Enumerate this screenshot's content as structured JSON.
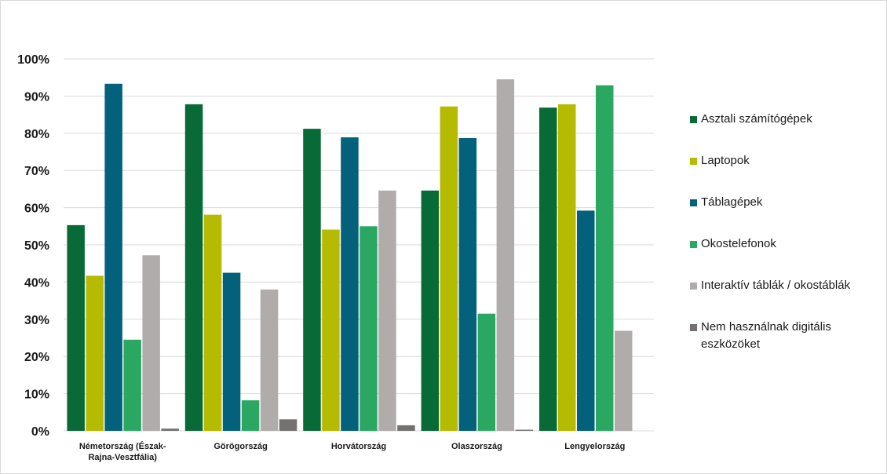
{
  "chart_data": {
    "type": "bar",
    "title": "",
    "xlabel": "",
    "ylabel": "",
    "ylim": [
      0,
      100
    ],
    "yticks": [
      0,
      10,
      20,
      30,
      40,
      50,
      60,
      70,
      80,
      90,
      100
    ],
    "ytick_labels": [
      "0%",
      "10%",
      "20%",
      "30%",
      "40%",
      "50%",
      "60%",
      "70%",
      "80%",
      "90%",
      "100%"
    ],
    "grid": true,
    "legend_position": "right",
    "categories": [
      "Németország (Észak-Rajna-Vesztfália)",
      "Görögország",
      "Horvátország",
      "Olaszország",
      "Lengyelország"
    ],
    "category_lines": [
      [
        "Németország (Észak-",
        "Rajna-Vesztfália)"
      ],
      [
        "Görögország"
      ],
      [
        "Horvátország"
      ],
      [
        "Olaszország"
      ],
      [
        "Lengyelország"
      ]
    ],
    "series": [
      {
        "name": "Asztali számítógépek",
        "color": "#076a37",
        "values": [
          55.3,
          87.8,
          81.2,
          64.6,
          86.9
        ]
      },
      {
        "name": "Laptopok",
        "color": "#b5bb00",
        "values": [
          41.7,
          58.1,
          54.1,
          87.2,
          87.8
        ]
      },
      {
        "name": "Táblagépek",
        "color": "#04617b",
        "values": [
          93.3,
          42.5,
          78.9,
          78.7,
          59.2
        ]
      },
      {
        "name": "Okostelefonok",
        "color": "#2aa862",
        "values": [
          24.5,
          8.2,
          55.0,
          31.5,
          92.9
        ]
      },
      {
        "name": "Interaktív táblák / okostáblák",
        "color": "#b0acab",
        "values": [
          47.2,
          38.0,
          64.6,
          94.5,
          26.9
        ]
      },
      {
        "name": "Nem használnak digitális eszközöket",
        "color": "#757171",
        "legend_lines": [
          "Nem használnak digitális",
          "eszközöket"
        ],
        "values": [
          0.6,
          3.1,
          1.5,
          0.3,
          0.0
        ]
      }
    ]
  }
}
